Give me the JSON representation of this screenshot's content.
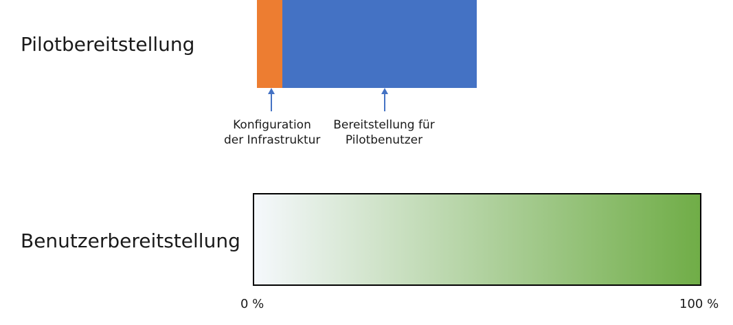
{
  "rows": {
    "pilot_label": "Pilotbereitstellung",
    "user_label": "Benutzerbereitstellung"
  },
  "segments": {
    "config_fraction": 0.115,
    "deploy_fraction": 0.885,
    "config_color": "#ED7D31",
    "deploy_color": "#4472C4"
  },
  "annotations": {
    "config": [
      "Konfiguration",
      "der Infrastruktur"
    ],
    "deploy": [
      "Bereitstellung für",
      "Pilotbenutzer"
    ],
    "arrow_color": "#4472C4"
  },
  "gradient": {
    "start_color": "#F5F8FC",
    "end_color": "#70AD47"
  },
  "scale": {
    "start": "0 %",
    "end": "100 %"
  }
}
